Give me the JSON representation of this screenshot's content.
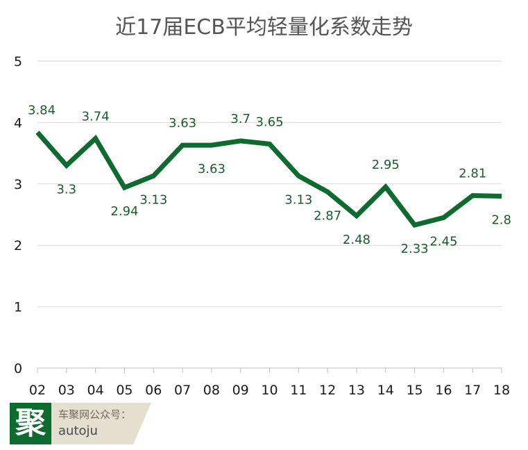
{
  "title": "近17届ECB平均轻量化系数走势",
  "chart_data": {
    "type": "line",
    "title": "近17届ECB平均轻量化系数走势",
    "categories": [
      "02",
      "03",
      "04",
      "05",
      "06",
      "07",
      "08",
      "09",
      "10",
      "11",
      "12",
      "13",
      "14",
      "15",
      "16",
      "17",
      "18"
    ],
    "series": [
      {
        "values": [
          3.84,
          3.3,
          3.74,
          2.94,
          3.13,
          3.63,
          3.63,
          3.7,
          3.65,
          3.13,
          2.87,
          2.48,
          2.95,
          2.33,
          2.45,
          2.81,
          2.8
        ],
        "color": "#0e6b2f"
      }
    ],
    "data_labels": [
      "3.84",
      "3.3",
      "3.74",
      "2.94",
      "3.13",
      "3.63",
      "3.63",
      "3.7",
      "3.65",
      "3.13",
      "2.87",
      "2.48",
      "2.95",
      "2.33",
      "2.45",
      "2.81",
      "2.8"
    ],
    "label_position": [
      "above",
      "below",
      "above",
      "below",
      "below",
      "above",
      "below",
      "above",
      "above",
      "below",
      "below",
      "below",
      "above",
      "below",
      "below",
      "above",
      "below"
    ],
    "y_ticks": [
      "0",
      "1",
      "2",
      "3",
      "4",
      "5"
    ],
    "ylim": [
      0,
      5
    ],
    "xlabel": "",
    "ylabel": "",
    "grid": true,
    "legend": "none"
  },
  "brand": {
    "logo_char": "聚",
    "caption": "车聚网公众号：",
    "handle": "autoju"
  }
}
